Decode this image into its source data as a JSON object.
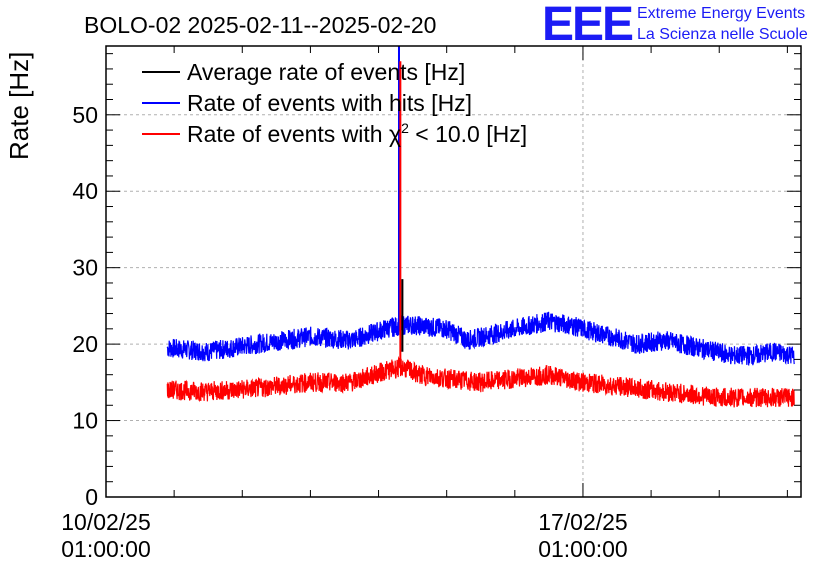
{
  "chart_data": {
    "type": "line",
    "title": "BOLO-02 2025-02-11--2025-02-20",
    "ylabel": "Rate [Hz]",
    "xlabel": "",
    "ylim": [
      0,
      59
    ],
    "xlim_days": [
      0,
      10.2
    ],
    "grid": true,
    "legend_position": "top-left",
    "y_ticks": [
      0,
      10,
      20,
      30,
      40,
      50
    ],
    "y_tick_labels": [
      "0",
      "10",
      "20",
      "30",
      "40",
      "50"
    ],
    "x_ticks": [
      {
        "day": 0,
        "date": "10/02/25",
        "time": "01:00:00"
      },
      {
        "day": 7,
        "date": "17/02/25",
        "time": "01:00:00"
      }
    ],
    "series": [
      {
        "name": "Average rate of events [Hz]",
        "color": "#000000",
        "days": [
          4.3,
          4.35,
          4.4
        ],
        "values": [
          19,
          28.5,
          19
        ],
        "spike_day": 4.35,
        "spike_value": 28.5
      },
      {
        "name": "Rate of events with hits [Hz]",
        "color": "#0000ff",
        "days": [
          0.9,
          1.5,
          2.2,
          3.0,
          3.6,
          4.1,
          4.35,
          4.5,
          5.0,
          5.3,
          6.0,
          6.5,
          6.8,
          7.2,
          7.8,
          8.2,
          8.7,
          9.2,
          9.5,
          9.8,
          10.1
        ],
        "values": [
          19.5,
          19.0,
          20.0,
          21.0,
          20.5,
          22.0,
          22.5,
          22.5,
          22.0,
          20.5,
          22.0,
          23.0,
          22.5,
          21.5,
          20.0,
          20.5,
          19.5,
          18.5,
          18.5,
          19.0,
          18.5
        ],
        "spike_day": 4.3,
        "spike_value": 59
      },
      {
        "name": "Rate of events with χ² < 10.0 [Hz]",
        "legend_base": "Rate of events with ",
        "legend_chi": "χ",
        "legend_sup": "2",
        "legend_tail": " < 10.0 [Hz]",
        "color": "#ff0000",
        "days": [
          0.9,
          1.5,
          2.2,
          3.0,
          3.6,
          4.1,
          4.35,
          4.6,
          5.0,
          5.5,
          6.0,
          6.5,
          7.0,
          7.5,
          8.0,
          8.5,
          9.0,
          9.5,
          10.1
        ],
        "values": [
          14.0,
          13.8,
          14.2,
          15.0,
          15.0,
          16.5,
          17.0,
          16.0,
          15.5,
          15.0,
          15.5,
          16.0,
          15.0,
          14.5,
          14.0,
          13.5,
          13.0,
          13.0,
          13.0
        ],
        "spike_day": 4.32,
        "spike_value": 57
      }
    ]
  },
  "logo": {
    "letters": "EEE",
    "line1": "Extreme Energy Events",
    "line2": "La Scienza nelle Scuole",
    "color": "#1b1bf5"
  }
}
